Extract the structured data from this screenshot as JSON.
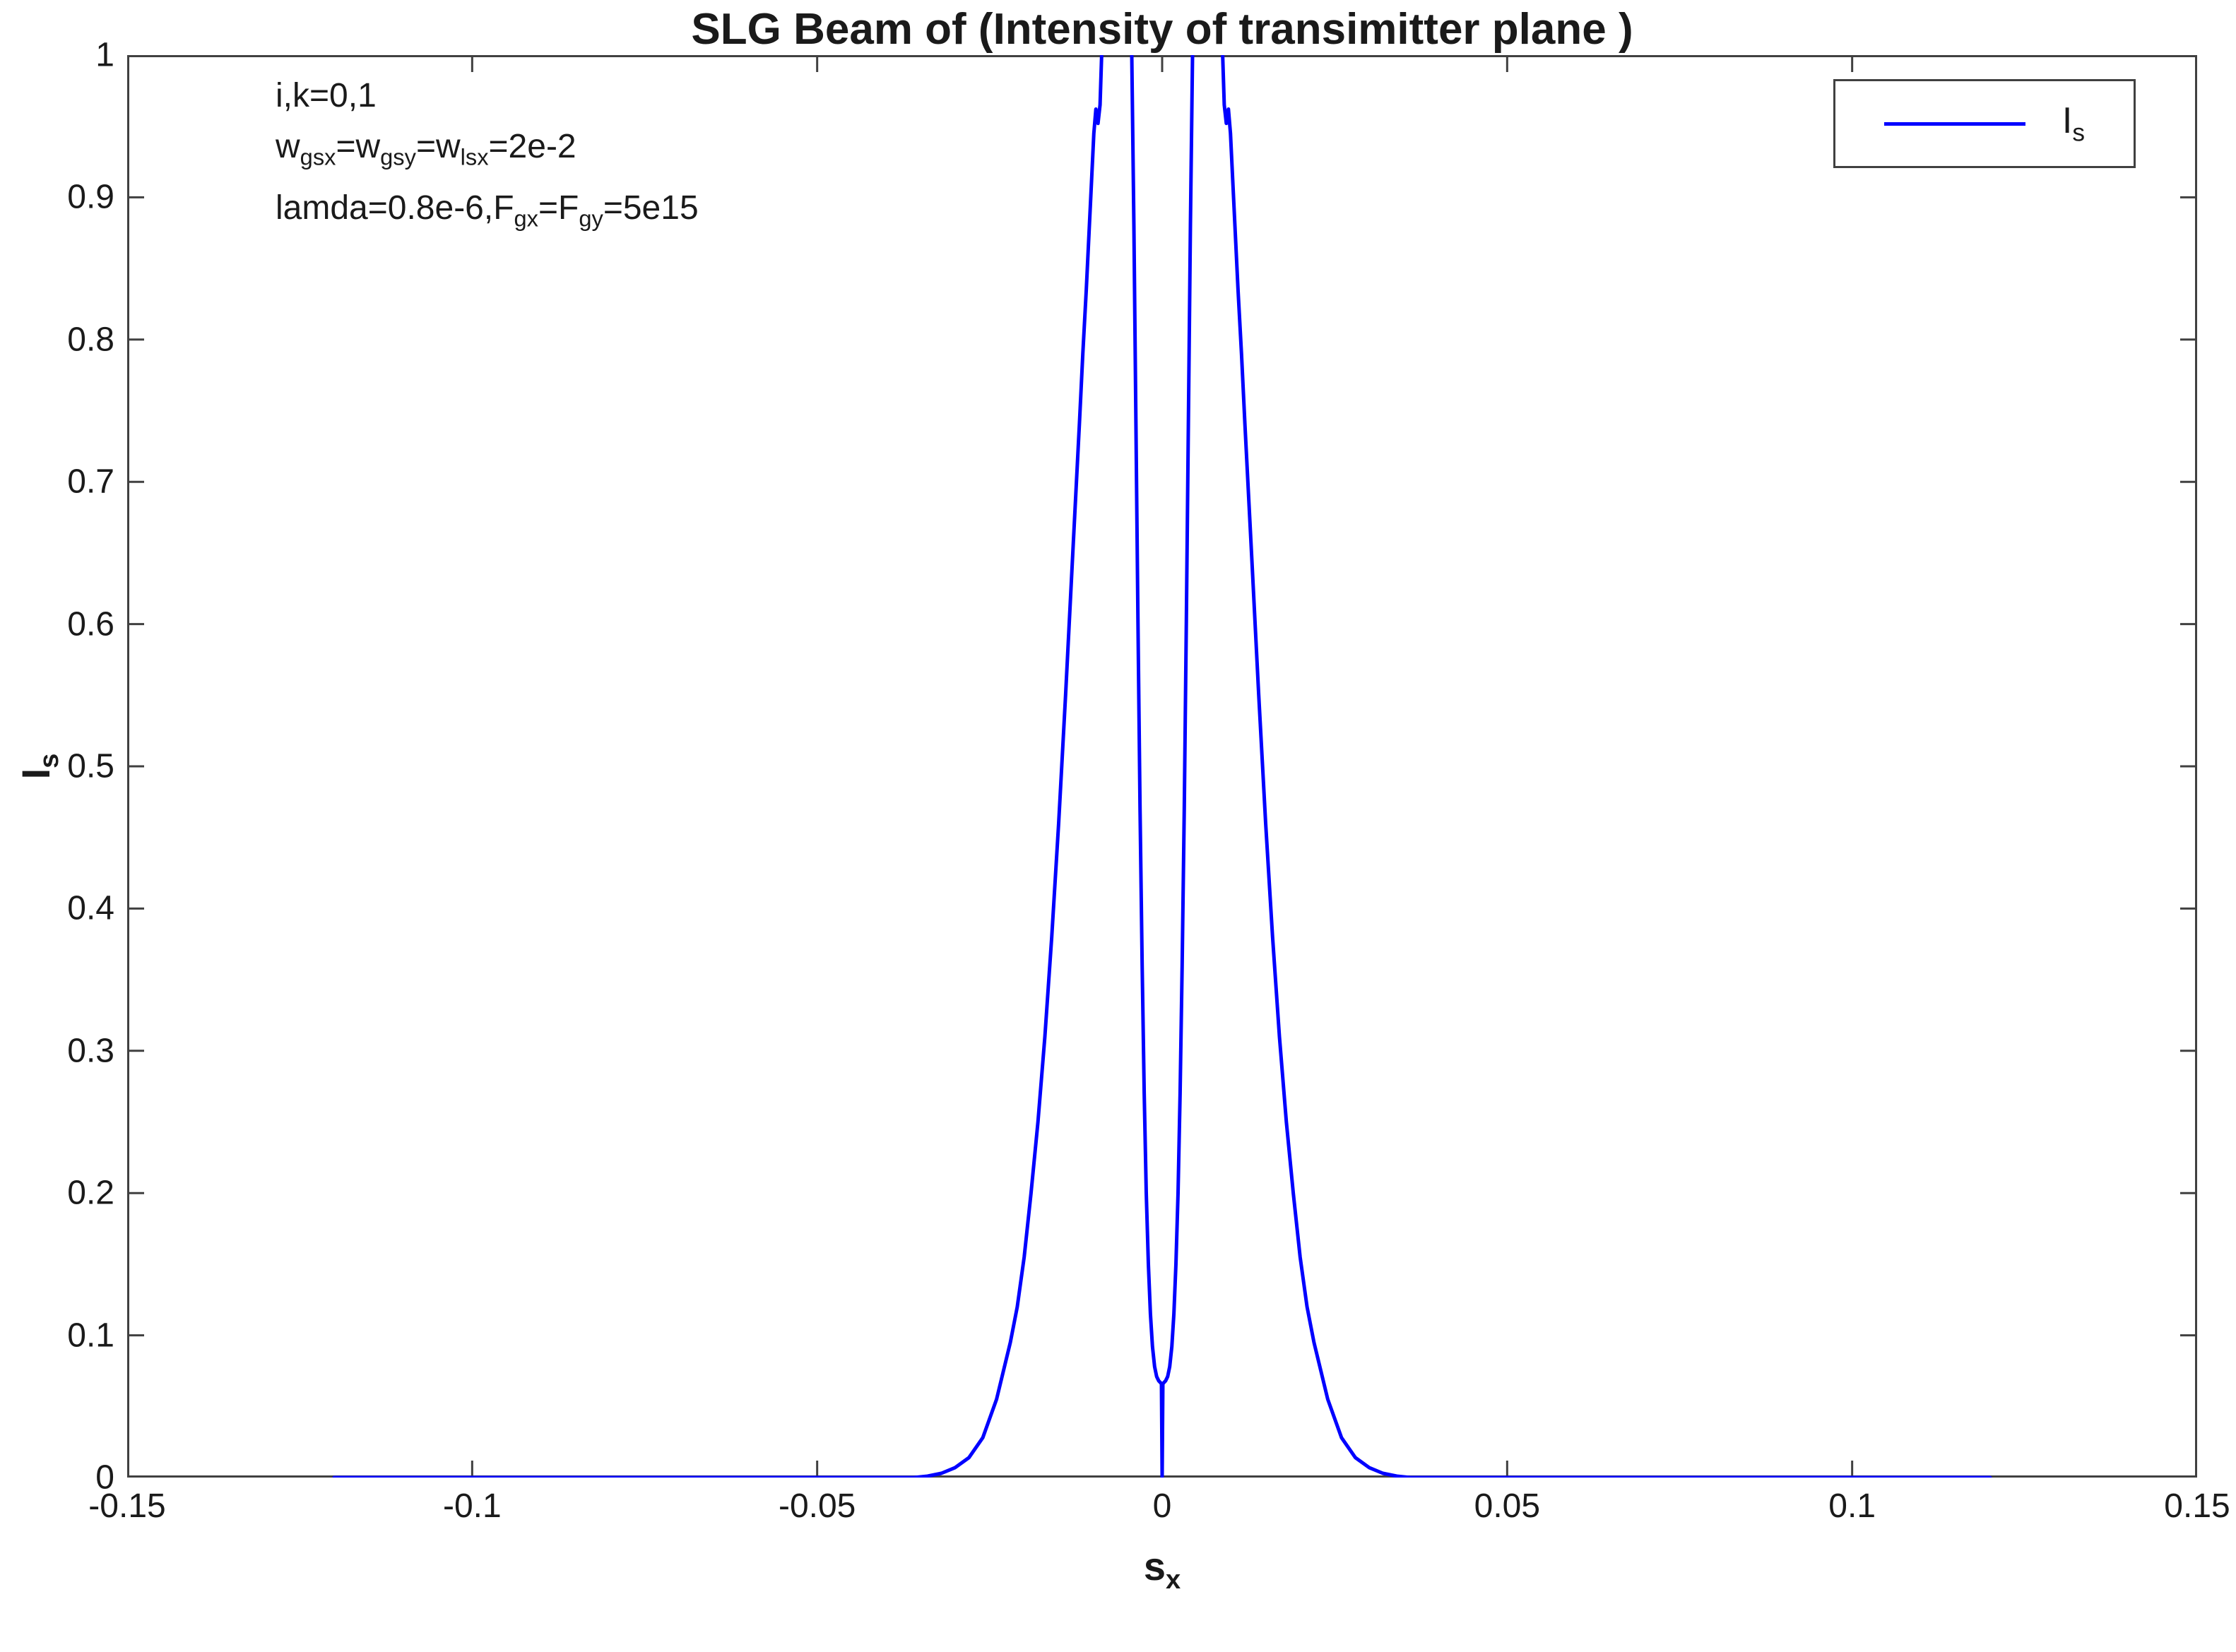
{
  "colors": {
    "curve": "#0000ff",
    "axis": "#404040",
    "text": "#1a1a1a",
    "background": "#ffffff"
  },
  "chart_data": {
    "type": "line",
    "title": "SLG Beam of (Intensity of transimitter plane )",
    "xlabel": "s_x",
    "ylabel": "I_s",
    "xlim": [
      -0.15,
      0.15
    ],
    "ylim": [
      0,
      1
    ],
    "grid": false,
    "x_ticks": [
      -0.15,
      -0.1,
      -0.05,
      0,
      0.05,
      0.1,
      0.15
    ],
    "x_tick_labels": [
      "-0.15",
      "-0.1",
      "-0.05",
      "0",
      "0.05",
      "0.1",
      "0.15"
    ],
    "y_ticks": [
      0,
      0.1,
      0.2,
      0.3,
      0.4,
      0.5,
      0.6,
      0.7,
      0.8,
      0.9,
      1
    ],
    "y_tick_labels": [
      "0",
      "0.1",
      "0.2",
      "0.3",
      "0.4",
      "0.5",
      "0.6",
      "0.7",
      "0.8",
      "0.9",
      "1"
    ],
    "annotations": [
      "i,k=0,1",
      "w_gsx=w_gsy=w_lsx=2e-2",
      "lamda=0.8e-6,F_gx=F_gy=5e15"
    ],
    "legend": {
      "position": "top-right",
      "entries": [
        {
          "label": "I_s",
          "color": "#0000ff"
        }
      ]
    },
    "series": [
      {
        "name": "I_s",
        "color": "#0000ff",
        "points": [
          [
            -0.12,
            0
          ],
          [
            -0.1,
            0
          ],
          [
            -0.08,
            0
          ],
          [
            -0.06,
            0
          ],
          [
            -0.05,
            0
          ],
          [
            -0.04,
            0
          ],
          [
            -0.036,
            0
          ],
          [
            -0.034,
            0.001
          ],
          [
            -0.032,
            0.003
          ],
          [
            -0.03,
            0.007
          ],
          [
            -0.028,
            0.014
          ],
          [
            -0.026,
            0.028
          ],
          [
            -0.024,
            0.055
          ],
          [
            -0.022,
            0.095
          ],
          [
            -0.021,
            0.12
          ],
          [
            -0.02,
            0.155
          ],
          [
            -0.019,
            0.2
          ],
          [
            -0.018,
            0.25
          ],
          [
            -0.017,
            0.31
          ],
          [
            -0.016,
            0.38
          ],
          [
            -0.015,
            0.46
          ],
          [
            -0.014,
            0.55
          ],
          [
            -0.013,
            0.645
          ],
          [
            -0.012,
            0.74
          ],
          [
            -0.0115,
            0.79
          ],
          [
            -0.011,
            0.835
          ],
          [
            -0.0106,
            0.875
          ],
          [
            -0.0102,
            0.915
          ],
          [
            -0.0099,
            0.945
          ],
          [
            -0.0096,
            0.962
          ],
          [
            -0.0093,
            0.952
          ],
          [
            -0.009,
            0.965
          ],
          [
            -0.0087,
            1.01
          ],
          [
            -0.0083,
            1.12
          ],
          [
            -0.0078,
            1.3
          ],
          [
            -0.0072,
            1.5
          ],
          [
            -0.0065,
            1.62
          ],
          [
            -0.0058,
            1.55
          ],
          [
            -0.0052,
            1.35
          ],
          [
            -0.0047,
            1.12
          ],
          [
            -0.0044,
            1.0
          ],
          [
            -0.0041,
            0.88
          ],
          [
            -0.0038,
            0.74
          ],
          [
            -0.0035,
            0.6
          ],
          [
            -0.0032,
            0.47
          ],
          [
            -0.0029,
            0.36
          ],
          [
            -0.0026,
            0.27
          ],
          [
            -0.0023,
            0.2
          ],
          [
            -0.002,
            0.15
          ],
          [
            -0.0017,
            0.115
          ],
          [
            -0.0014,
            0.092
          ],
          [
            -0.0011,
            0.078
          ],
          [
            -0.0008,
            0.071
          ],
          [
            -0.0005,
            0.068
          ],
          [
            -0.0003,
            0.067
          ],
          [
            -0.0001,
            0.066
          ],
          [
            0,
            0
          ],
          [
            0.0001,
            0.066
          ],
          [
            0.0003,
            0.067
          ],
          [
            0.0005,
            0.068
          ],
          [
            0.0008,
            0.071
          ],
          [
            0.0011,
            0.078
          ],
          [
            0.0014,
            0.092
          ],
          [
            0.0017,
            0.115
          ],
          [
            0.002,
            0.15
          ],
          [
            0.0023,
            0.2
          ],
          [
            0.0026,
            0.27
          ],
          [
            0.0029,
            0.36
          ],
          [
            0.0032,
            0.47
          ],
          [
            0.0035,
            0.6
          ],
          [
            0.0038,
            0.74
          ],
          [
            0.0041,
            0.88
          ],
          [
            0.0044,
            1.0
          ],
          [
            0.0047,
            1.12
          ],
          [
            0.0052,
            1.35
          ],
          [
            0.0058,
            1.55
          ],
          [
            0.0065,
            1.62
          ],
          [
            0.0072,
            1.5
          ],
          [
            0.0078,
            1.3
          ],
          [
            0.0083,
            1.12
          ],
          [
            0.0087,
            1.01
          ],
          [
            0.009,
            0.965
          ],
          [
            0.0093,
            0.952
          ],
          [
            0.0096,
            0.962
          ],
          [
            0.0099,
            0.945
          ],
          [
            0.0102,
            0.915
          ],
          [
            0.0106,
            0.875
          ],
          [
            0.011,
            0.835
          ],
          [
            0.0115,
            0.79
          ],
          [
            0.012,
            0.74
          ],
          [
            0.013,
            0.645
          ],
          [
            0.014,
            0.55
          ],
          [
            0.015,
            0.46
          ],
          [
            0.016,
            0.38
          ],
          [
            0.017,
            0.31
          ],
          [
            0.018,
            0.25
          ],
          [
            0.019,
            0.2
          ],
          [
            0.02,
            0.155
          ],
          [
            0.021,
            0.12
          ],
          [
            0.022,
            0.095
          ],
          [
            0.024,
            0.055
          ],
          [
            0.026,
            0.028
          ],
          [
            0.028,
            0.014
          ],
          [
            0.03,
            0.007
          ],
          [
            0.032,
            0.003
          ],
          [
            0.034,
            0.001
          ],
          [
            0.036,
            0
          ],
          [
            0.04,
            0
          ],
          [
            0.05,
            0
          ],
          [
            0.06,
            0
          ],
          [
            0.08,
            0
          ],
          [
            0.1,
            0
          ],
          [
            0.12,
            0
          ]
        ]
      }
    ]
  }
}
